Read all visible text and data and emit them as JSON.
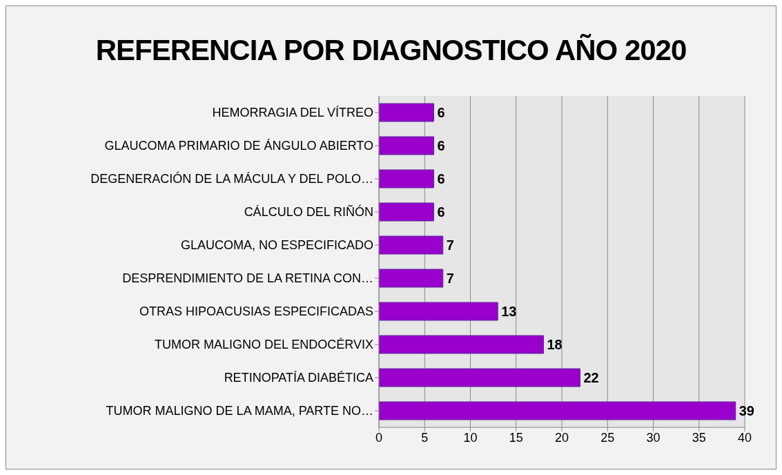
{
  "chart_data": {
    "type": "bar",
    "orientation": "horizontal",
    "title": "REFERENCIA POR DIAGNOSTICO AÑO 2020",
    "categories": [
      "HEMORRAGIA DEL VÍTREO",
      "GLAUCOMA PRIMARIO DE ÁNGULO ABIERTO",
      "DEGENERACIÓN DE LA MÁCULA Y DEL POLO…",
      "CÁLCULO DEL RIÑÓN",
      "GLAUCOMA, NO ESPECIFICADO",
      "DESPRENDIMIENTO DE LA RETINA CON…",
      "OTRAS HIPOACUSIAS ESPECIFICADAS",
      "TUMOR MALIGNO DEL ENDOCÉRVIX",
      "RETINOPATÍA DIABÉTICA",
      "TUMOR MALIGNO DE LA MAMA, PARTE NO…"
    ],
    "values": [
      6,
      6,
      6,
      6,
      7,
      7,
      13,
      18,
      22,
      39
    ],
    "color": "#9900cc",
    "xlim": [
      0,
      40
    ],
    "xticks": [
      0,
      5,
      10,
      15,
      20,
      25,
      30,
      35,
      40
    ],
    "grid": "x",
    "data_labels": true
  }
}
